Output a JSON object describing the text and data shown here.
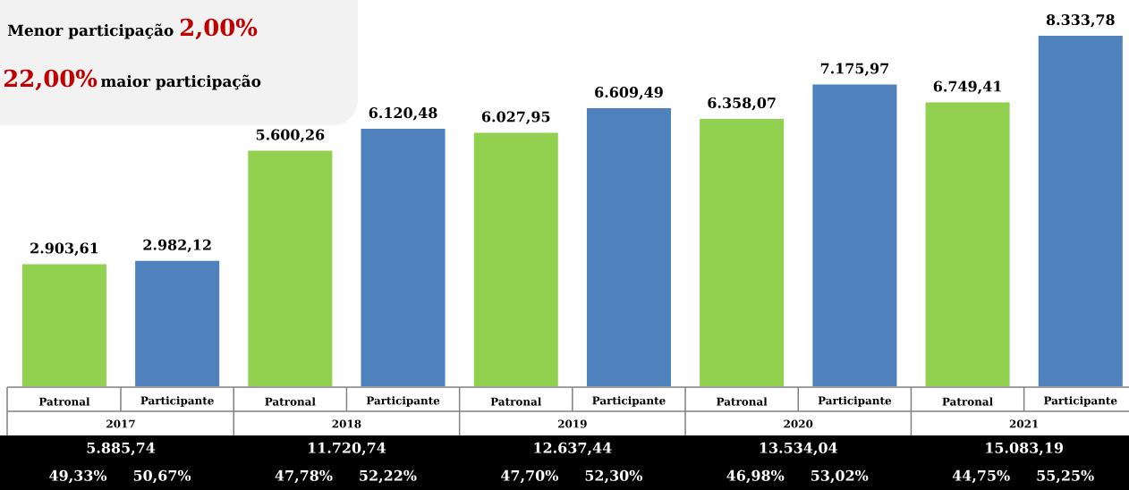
{
  "chart_data": {
    "type": "bar",
    "categories": [
      "Patronal",
      "Participante",
      "Patronal",
      "Participante",
      "Patronal",
      "Participante",
      "Patronal",
      "Participante",
      "Patronal",
      "Participante"
    ],
    "values": [
      2903.61,
      2982.12,
      5600.26,
      6120.48,
      6027.95,
      6609.49,
      6358.07,
      7175.97,
      6749.41,
      8333.78
    ],
    "value_labels": [
      "2.903,61",
      "2.982,12",
      "5.600,26",
      "6.120,48",
      "6.027,95",
      "6.609,49",
      "6.358,07",
      "7.175,97",
      "6.749,41",
      "8.333,78"
    ],
    "colors": [
      "#92d050",
      "#4f81bd",
      "#92d050",
      "#4f81bd",
      "#92d050",
      "#4f81bd",
      "#92d050",
      "#4f81bd",
      "#92d050",
      "#4f81bd"
    ],
    "annotations": [
      "Menor participação",
      "2,00%",
      "22,00%",
      "maior participação",
      "2017",
      "5.885,74",
      "49,33%",
      "50,67%",
      "2018",
      "11.720,74",
      "47,78%",
      "52,22%",
      "2019",
      "12.637,44",
      "47,70%",
      "52,30%",
      "2020",
      "13.534,04",
      "46,98%",
      "53,02%",
      "2021",
      "15.083,19",
      "44,75%",
      "55,25%"
    ]
  }
}
